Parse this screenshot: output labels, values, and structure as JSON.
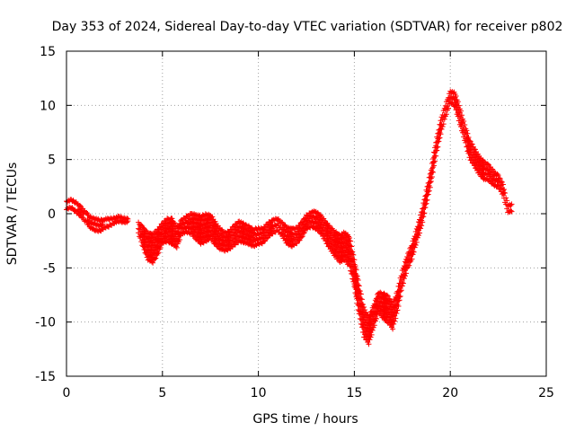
{
  "chart_data": {
    "type": "scatter",
    "title": "Day 353 of 2024, Sidereal Day-to-day VTEC variation (SDTVAR) for receiver p802",
    "xlabel": "GPS time / hours",
    "ylabel": "SDTVAR / TECUs",
    "xlim": [
      0,
      25
    ],
    "ylim": [
      -15,
      15
    ],
    "xticks": [
      0,
      5,
      10,
      15,
      20,
      25
    ],
    "yticks": [
      -15,
      -10,
      -5,
      0,
      5,
      10,
      15
    ],
    "grid": true,
    "marker": "+",
    "series": [
      {
        "name": "SDTVAR",
        "color": "#ff0000",
        "x": [
          0.0,
          0.25,
          0.5,
          0.75,
          1.0,
          1.25,
          1.5,
          1.75,
          2.0,
          2.25,
          2.5,
          2.75,
          3.0,
          3.75,
          4.0,
          4.25,
          4.5,
          4.75,
          5.0,
          5.25,
          5.5,
          5.75,
          6.0,
          6.25,
          6.5,
          6.75,
          7.0,
          7.25,
          7.5,
          7.75,
          8.0,
          8.25,
          8.5,
          8.75,
          9.0,
          9.25,
          9.5,
          9.75,
          10.0,
          10.25,
          10.5,
          10.75,
          11.0,
          11.25,
          11.5,
          11.75,
          12.0,
          12.25,
          12.5,
          12.75,
          13.0,
          13.25,
          13.5,
          13.75,
          14.0,
          14.25,
          14.5,
          14.75,
          15.0,
          15.25,
          15.5,
          15.75,
          16.0,
          16.25,
          16.5,
          16.75,
          17.0,
          17.25,
          17.5,
          17.75,
          18.0,
          18.25,
          18.5,
          18.75,
          19.0,
          19.25,
          19.5,
          19.75,
          20.0,
          20.25,
          20.5,
          20.75,
          21.0,
          21.25,
          21.5,
          21.75,
          22.0,
          22.25,
          22.5,
          22.75,
          23.0
        ],
        "y": [
          0.8,
          0.9,
          0.6,
          0.2,
          -0.3,
          -0.8,
          -1.0,
          -1.1,
          -0.9,
          -0.8,
          -0.6,
          -0.5,
          -0.6,
          -1.3,
          -2.2,
          -3.0,
          -3.2,
          -2.6,
          -1.8,
          -1.5,
          -1.6,
          -2.2,
          -1.2,
          -1.0,
          -0.9,
          -1.2,
          -1.5,
          -1.3,
          -1.2,
          -1.8,
          -2.3,
          -2.6,
          -2.4,
          -2.0,
          -1.6,
          -1.8,
          -2.0,
          -2.2,
          -2.1,
          -2.0,
          -1.5,
          -1.2,
          -1.0,
          -1.5,
          -2.0,
          -2.2,
          -2.0,
          -1.5,
          -0.8,
          -0.5,
          -0.6,
          -1.0,
          -1.6,
          -2.3,
          -2.8,
          -3.2,
          -3.0,
          -3.5,
          -5.5,
          -8.0,
          -10.0,
          -10.8,
          -9.5,
          -8.2,
          -8.5,
          -8.8,
          -9.5,
          -8.0,
          -6.0,
          -4.5,
          -3.5,
          -2.0,
          -0.5,
          1.5,
          3.5,
          6.0,
          8.0,
          9.5,
          10.8,
          10.5,
          9.0,
          7.5,
          6.0,
          5.2,
          4.5,
          4.0,
          3.8,
          3.3,
          3.0,
          2.2,
          0.5
        ],
        "y_spread": [
          0.7,
          0.7,
          0.8,
          0.9,
          0.8,
          0.9,
          1.1,
          0.9,
          0.8,
          0.6,
          0.4,
          0.4,
          0.3,
          1.0,
          1.8,
          2.4,
          2.6,
          2.2,
          1.8,
          2.0,
          2.3,
          1.8,
          1.2,
          1.4,
          1.8,
          2.2,
          2.5,
          2.4,
          2.2,
          2.0,
          1.8,
          1.6,
          1.6,
          1.8,
          1.8,
          1.6,
          1.6,
          1.5,
          1.4,
          1.3,
          1.2,
          1.2,
          1.0,
          1.2,
          1.5,
          1.5,
          1.4,
          1.3,
          1.2,
          1.3,
          1.5,
          1.6,
          1.8,
          2.0,
          2.2,
          2.4,
          2.5,
          2.6,
          2.5,
          2.6,
          2.6,
          2.4,
          2.0,
          1.8,
          2.2,
          2.4,
          2.2,
          1.8,
          1.4,
          1.2,
          1.2,
          1.2,
          1.2,
          1.2,
          1.2,
          1.2,
          1.2,
          1.0,
          1.0,
          1.2,
          1.4,
          1.4,
          1.6,
          1.6,
          1.6,
          1.5,
          1.4,
          1.2,
          1.1,
          0.9,
          0.6
        ]
      }
    ]
  }
}
